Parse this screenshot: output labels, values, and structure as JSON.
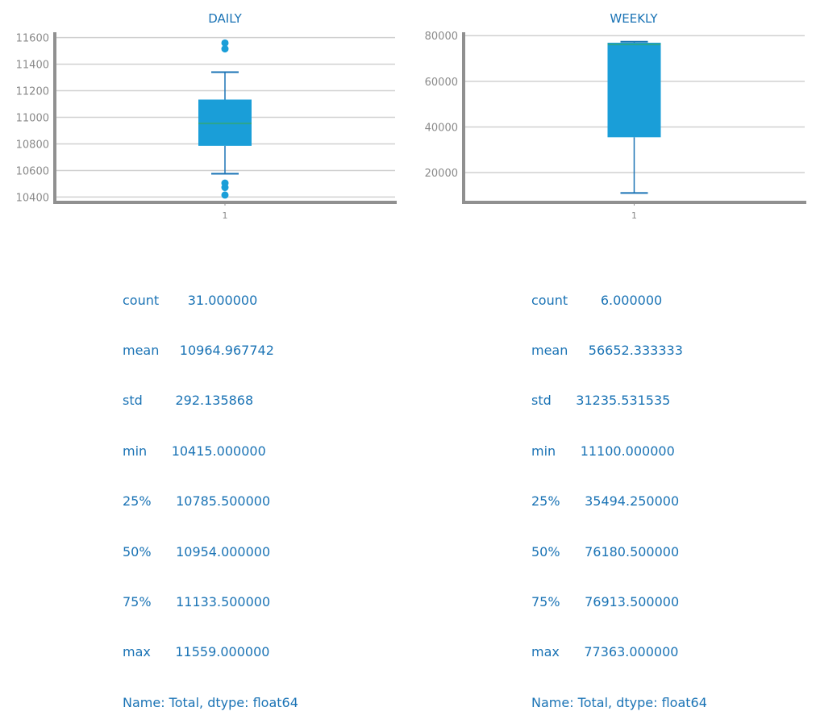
{
  "chart_data": [
    {
      "type": "box",
      "title": "DAILY",
      "categories": [
        "1"
      ],
      "ylim": [
        10360,
        11640
      ],
      "yticks": [
        10400,
        10600,
        10800,
        11000,
        11200,
        11400,
        11600
      ],
      "box": {
        "whislo": 10575,
        "q1": 10785.5,
        "med": 10954,
        "q3": 11133.5,
        "whishi": 11340
      },
      "fliers": [
        10415,
        10472,
        10505,
        11515,
        11559
      ],
      "grid": true
    },
    {
      "type": "box",
      "title": "WEEKLY",
      "categories": [
        "1"
      ],
      "ylim": [
        7000,
        81500
      ],
      "yticks": [
        20000,
        40000,
        60000,
        80000
      ],
      "box": {
        "whislo": 11100,
        "q1": 35494.25,
        "med": 76180.5,
        "q3": 76913.5,
        "whishi": 77363
      },
      "fliers": [],
      "grid": true
    }
  ],
  "stats": [
    {
      "rows": [
        "count       31.000000",
        "mean     10964.967742",
        "std        292.135868",
        "min      10415.000000",
        "25%      10785.500000",
        "50%      10954.000000",
        "75%      11133.500000",
        "max      11559.000000",
        "Name: Total, dtype: float64"
      ]
    },
    {
      "rows": [
        "count        6.000000",
        "mean     56652.333333",
        "std      31235.531535",
        "min      11100.000000",
        "25%      35494.250000",
        "50%      76180.500000",
        "75%      76913.500000",
        "max      77363.000000",
        "Name: Total, dtype: float64"
      ]
    }
  ],
  "colors": {
    "box": "#1a9ed8",
    "whisker": "#1a73b5",
    "median": "#2ca58d",
    "axis": "#909090",
    "grid": "#d0d0d0"
  }
}
